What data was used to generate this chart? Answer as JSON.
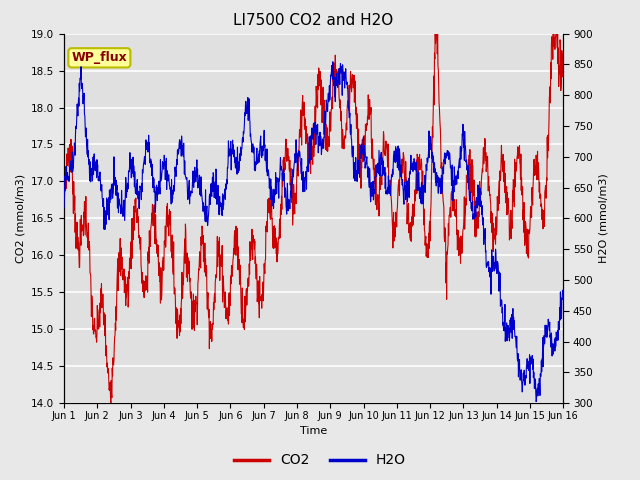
{
  "title": "LI7500 CO2 and H2O",
  "xlabel": "Time",
  "ylabel_left": "CO2 (mmol/m3)",
  "ylabel_right": "H2O (mmol/m3)",
  "ylim_left": [
    14.0,
    19.0
  ],
  "ylim_right": [
    300,
    900
  ],
  "xtick_labels": [
    "Jun 1",
    "Jun 2",
    "Jun 3",
    "Jun 4",
    "Jun 5",
    "Jun 6",
    "Jun 7",
    "Jun 8",
    "Jun 9",
    "Jun 10",
    "Jun 11",
    "Jun 12",
    "Jun 13",
    "Jun 14",
    "Jun 15",
    "Jun 16"
  ],
  "annotation_text": "WP_flux",
  "annotation_bg": "#ffff99",
  "annotation_edge": "#bbbb00",
  "annotation_color": "#880000",
  "co2_color": "#cc0000",
  "h2o_color": "#0000cc",
  "fig_bg": "#e8e8e8",
  "plot_bg": "#e0e0e0",
  "grid_color": "#ffffff",
  "title_fontsize": 11,
  "yticks_left": [
    14.0,
    14.5,
    15.0,
    15.5,
    16.0,
    16.5,
    17.0,
    17.5,
    18.0,
    18.5,
    19.0
  ],
  "yticks_right": [
    300,
    350,
    400,
    450,
    500,
    550,
    600,
    650,
    700,
    750,
    800,
    850,
    900
  ]
}
